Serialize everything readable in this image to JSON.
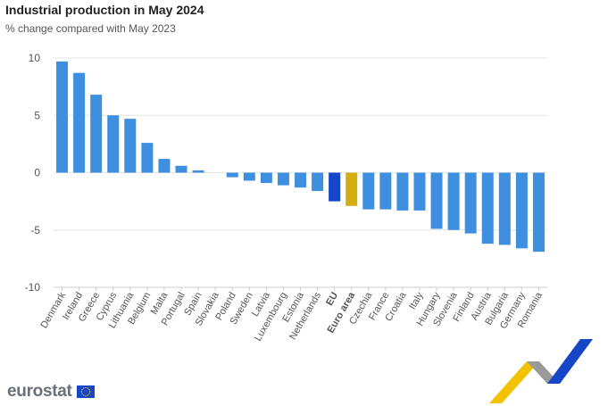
{
  "header": {
    "title": "Industrial production in May 2024",
    "subtitle": "% change compared with May 2023"
  },
  "logo": {
    "text": "eurostat",
    "flag_icon": "eu-flag-icon"
  },
  "colors": {
    "country_bar": "#3f8fe0",
    "eu_bar": "#1646c8",
    "euro_area_bar": "#d4ad10",
    "gridline": "#e4e4e4",
    "axis_text": "#555555",
    "logo_text": "#6b6f7a",
    "ribbon_blue": "#1646c8",
    "ribbon_yellow": "#f2c200",
    "ribbon_grey": "#9a9a9a"
  },
  "chart_data": {
    "type": "bar",
    "title": "Industrial production in May 2024",
    "subtitle": "% change compared with May 2023",
    "categories": [
      "Denmark",
      "Ireland",
      "Greece",
      "Cyprus",
      "Lithuania",
      "Belgium",
      "Malta",
      "Portugal",
      "Spain",
      "Slovakia",
      "Poland",
      "Sweden",
      "Latvia",
      "Luxembourg",
      "Estonia",
      "Netherlands",
      "EU",
      "Euro area",
      "Czechia",
      "France",
      "Croatia",
      "Italy",
      "Hungary",
      "Slovenia",
      "Finland",
      "Austria",
      "Bulgaria",
      "Germany",
      "Romania"
    ],
    "values": [
      9.7,
      8.7,
      6.8,
      5.0,
      4.7,
      2.6,
      1.2,
      0.6,
      0.2,
      0.0,
      -0.4,
      -0.7,
      -0.9,
      -1.1,
      -1.3,
      -1.6,
      -2.5,
      -2.9,
      -3.2,
      -3.2,
      -3.3,
      -3.3,
      -4.9,
      -5.0,
      -5.3,
      -6.2,
      -6.3,
      -6.6,
      -6.9
    ],
    "highlight": {
      "EU": "eu",
      "Euro area": "euro_area"
    },
    "bold_categories": [
      "EU",
      "Euro area"
    ],
    "yticks": [
      10,
      5,
      0,
      -5,
      -10
    ],
    "ylim": [
      -10,
      10
    ],
    "grid": true,
    "xlabel": "",
    "ylabel": ""
  }
}
